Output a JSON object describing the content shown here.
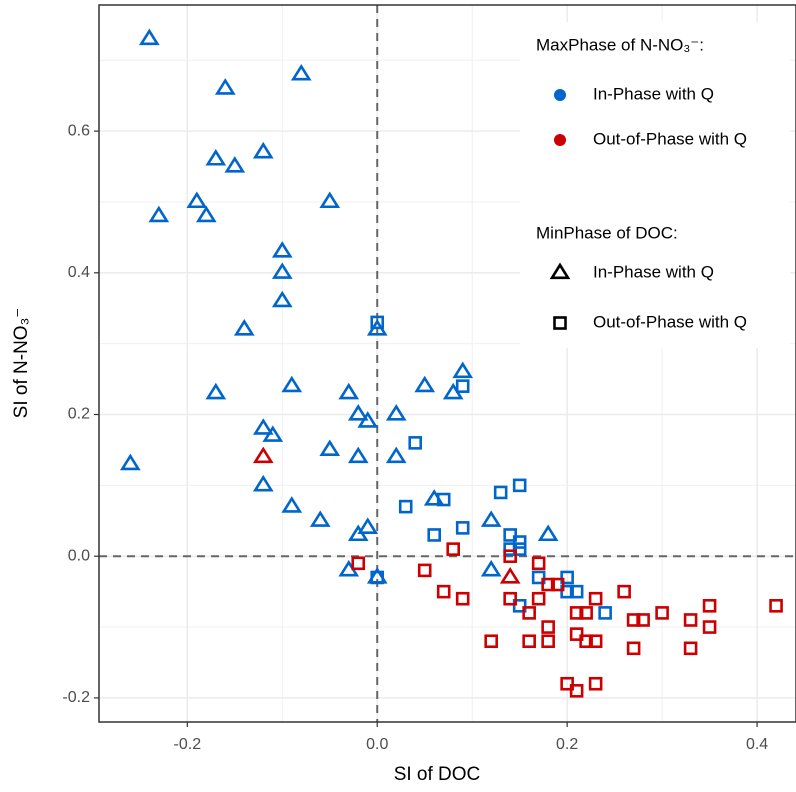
{
  "chart_data": {
    "type": "scatter",
    "x_label": "SI of DOC",
    "y_label": "SI of N-NO₃⁻",
    "xlim": [
      -0.293,
      0.441
    ],
    "ylim": [
      -0.234,
      0.778
    ],
    "xticks": [
      {
        "value": -0.2,
        "label": "-0.2"
      },
      {
        "value": 0,
        "label": "0.0"
      },
      {
        "value": 0.2,
        "label": "0.2"
      },
      {
        "value": 0.4,
        "label": "0.4"
      }
    ],
    "yticks": [
      {
        "value": -0.2,
        "label": "-0.2"
      },
      {
        "value": 0,
        "label": "0.0"
      },
      {
        "value": 0.2,
        "label": "0.2"
      },
      {
        "value": 0.4,
        "label": "0.4"
      },
      {
        "value": 0.6,
        "label": "0.6"
      }
    ],
    "grid": true,
    "reference_lines": {
      "x": 0,
      "y": 0
    },
    "legend": {
      "color": {
        "title": "MaxPhase of N-NO₃⁻:",
        "entries": [
          {
            "name": "In-Phase with Q",
            "color": "#0066cc"
          },
          {
            "name": "Out-of-Phase with Q",
            "color": "#cc0000"
          }
        ]
      },
      "shape": {
        "title": "MinPhase of DOC:",
        "entries": [
          {
            "name": "In-Phase with Q",
            "marker": "triangle"
          },
          {
            "name": "Out-of-Phase with Q",
            "marker": "square"
          }
        ]
      }
    },
    "series": [
      {
        "color": "#0066cc",
        "marker": "triangle",
        "x": [
          -0.24,
          -0.16,
          -0.08,
          -0.17,
          -0.12,
          -0.15,
          -0.23,
          -0.19,
          -0.18,
          -0.05,
          -0.1,
          -0.1,
          -0.1,
          -0.14,
          0.0,
          -0.17,
          -0.09,
          -0.03,
          0.05,
          0.09,
          0.08,
          -0.02,
          -0.01,
          0.02,
          -0.12,
          -0.11,
          -0.05,
          -0.02,
          0.02,
          -0.26,
          -0.12,
          -0.09,
          -0.06,
          0.06,
          0.12,
          -0.01,
          -0.02,
          0.18,
          -0.03,
          0.0,
          0.12
        ],
        "y": [
          0.73,
          0.66,
          0.68,
          0.56,
          0.57,
          0.55,
          0.48,
          0.5,
          0.48,
          0.5,
          0.43,
          0.4,
          0.36,
          0.32,
          0.32,
          0.23,
          0.24,
          0.23,
          0.24,
          0.26,
          0.23,
          0.2,
          0.19,
          0.2,
          0.18,
          0.17,
          0.15,
          0.14,
          0.14,
          0.13,
          0.1,
          0.07,
          0.05,
          0.08,
          0.05,
          0.04,
          0.03,
          0.03,
          -0.02,
          -0.03,
          -0.02
        ]
      },
      {
        "color": "#cc0000",
        "marker": "triangle",
        "x": [
          -0.12,
          0.14
        ],
        "y": [
          0.14,
          -0.03
        ]
      },
      {
        "color": "#0066cc",
        "marker": "square",
        "x": [
          0.0,
          0.09,
          0.04,
          0.15,
          0.13,
          0.07,
          0.03,
          0.09,
          0.06,
          0.14,
          0.15,
          0.14,
          0.15,
          0.0,
          0.17,
          0.2,
          0.2,
          0.21,
          0.15,
          0.24
        ],
        "y": [
          0.33,
          0.24,
          0.16,
          0.1,
          0.09,
          0.08,
          0.07,
          0.04,
          0.03,
          0.03,
          0.02,
          0.01,
          0.01,
          -0.03,
          -0.03,
          -0.03,
          -0.05,
          -0.05,
          -0.07,
          -0.08
        ]
      },
      {
        "color": "#cc0000",
        "marker": "square",
        "x": [
          -0.02,
          0.08,
          0.17,
          0.14,
          0.05,
          0.07,
          0.09,
          0.14,
          0.18,
          0.19,
          0.17,
          0.23,
          0.26,
          0.16,
          0.18,
          0.21,
          0.22,
          0.27,
          0.28,
          0.3,
          0.33,
          0.35,
          0.35,
          0.42,
          0.12,
          0.16,
          0.18,
          0.21,
          0.22,
          0.23,
          0.27,
          0.33,
          0.2,
          0.21,
          0.23
        ],
        "y": [
          -0.01,
          0.01,
          -0.01,
          0.0,
          -0.02,
          -0.05,
          -0.06,
          -0.06,
          -0.04,
          -0.04,
          -0.06,
          -0.06,
          -0.05,
          -0.08,
          -0.1,
          -0.08,
          -0.08,
          -0.09,
          -0.09,
          -0.08,
          -0.09,
          -0.07,
          -0.1,
          -0.07,
          -0.12,
          -0.12,
          -0.12,
          -0.11,
          -0.12,
          -0.12,
          -0.13,
          -0.13,
          -0.18,
          -0.19,
          -0.18
        ]
      }
    ]
  }
}
